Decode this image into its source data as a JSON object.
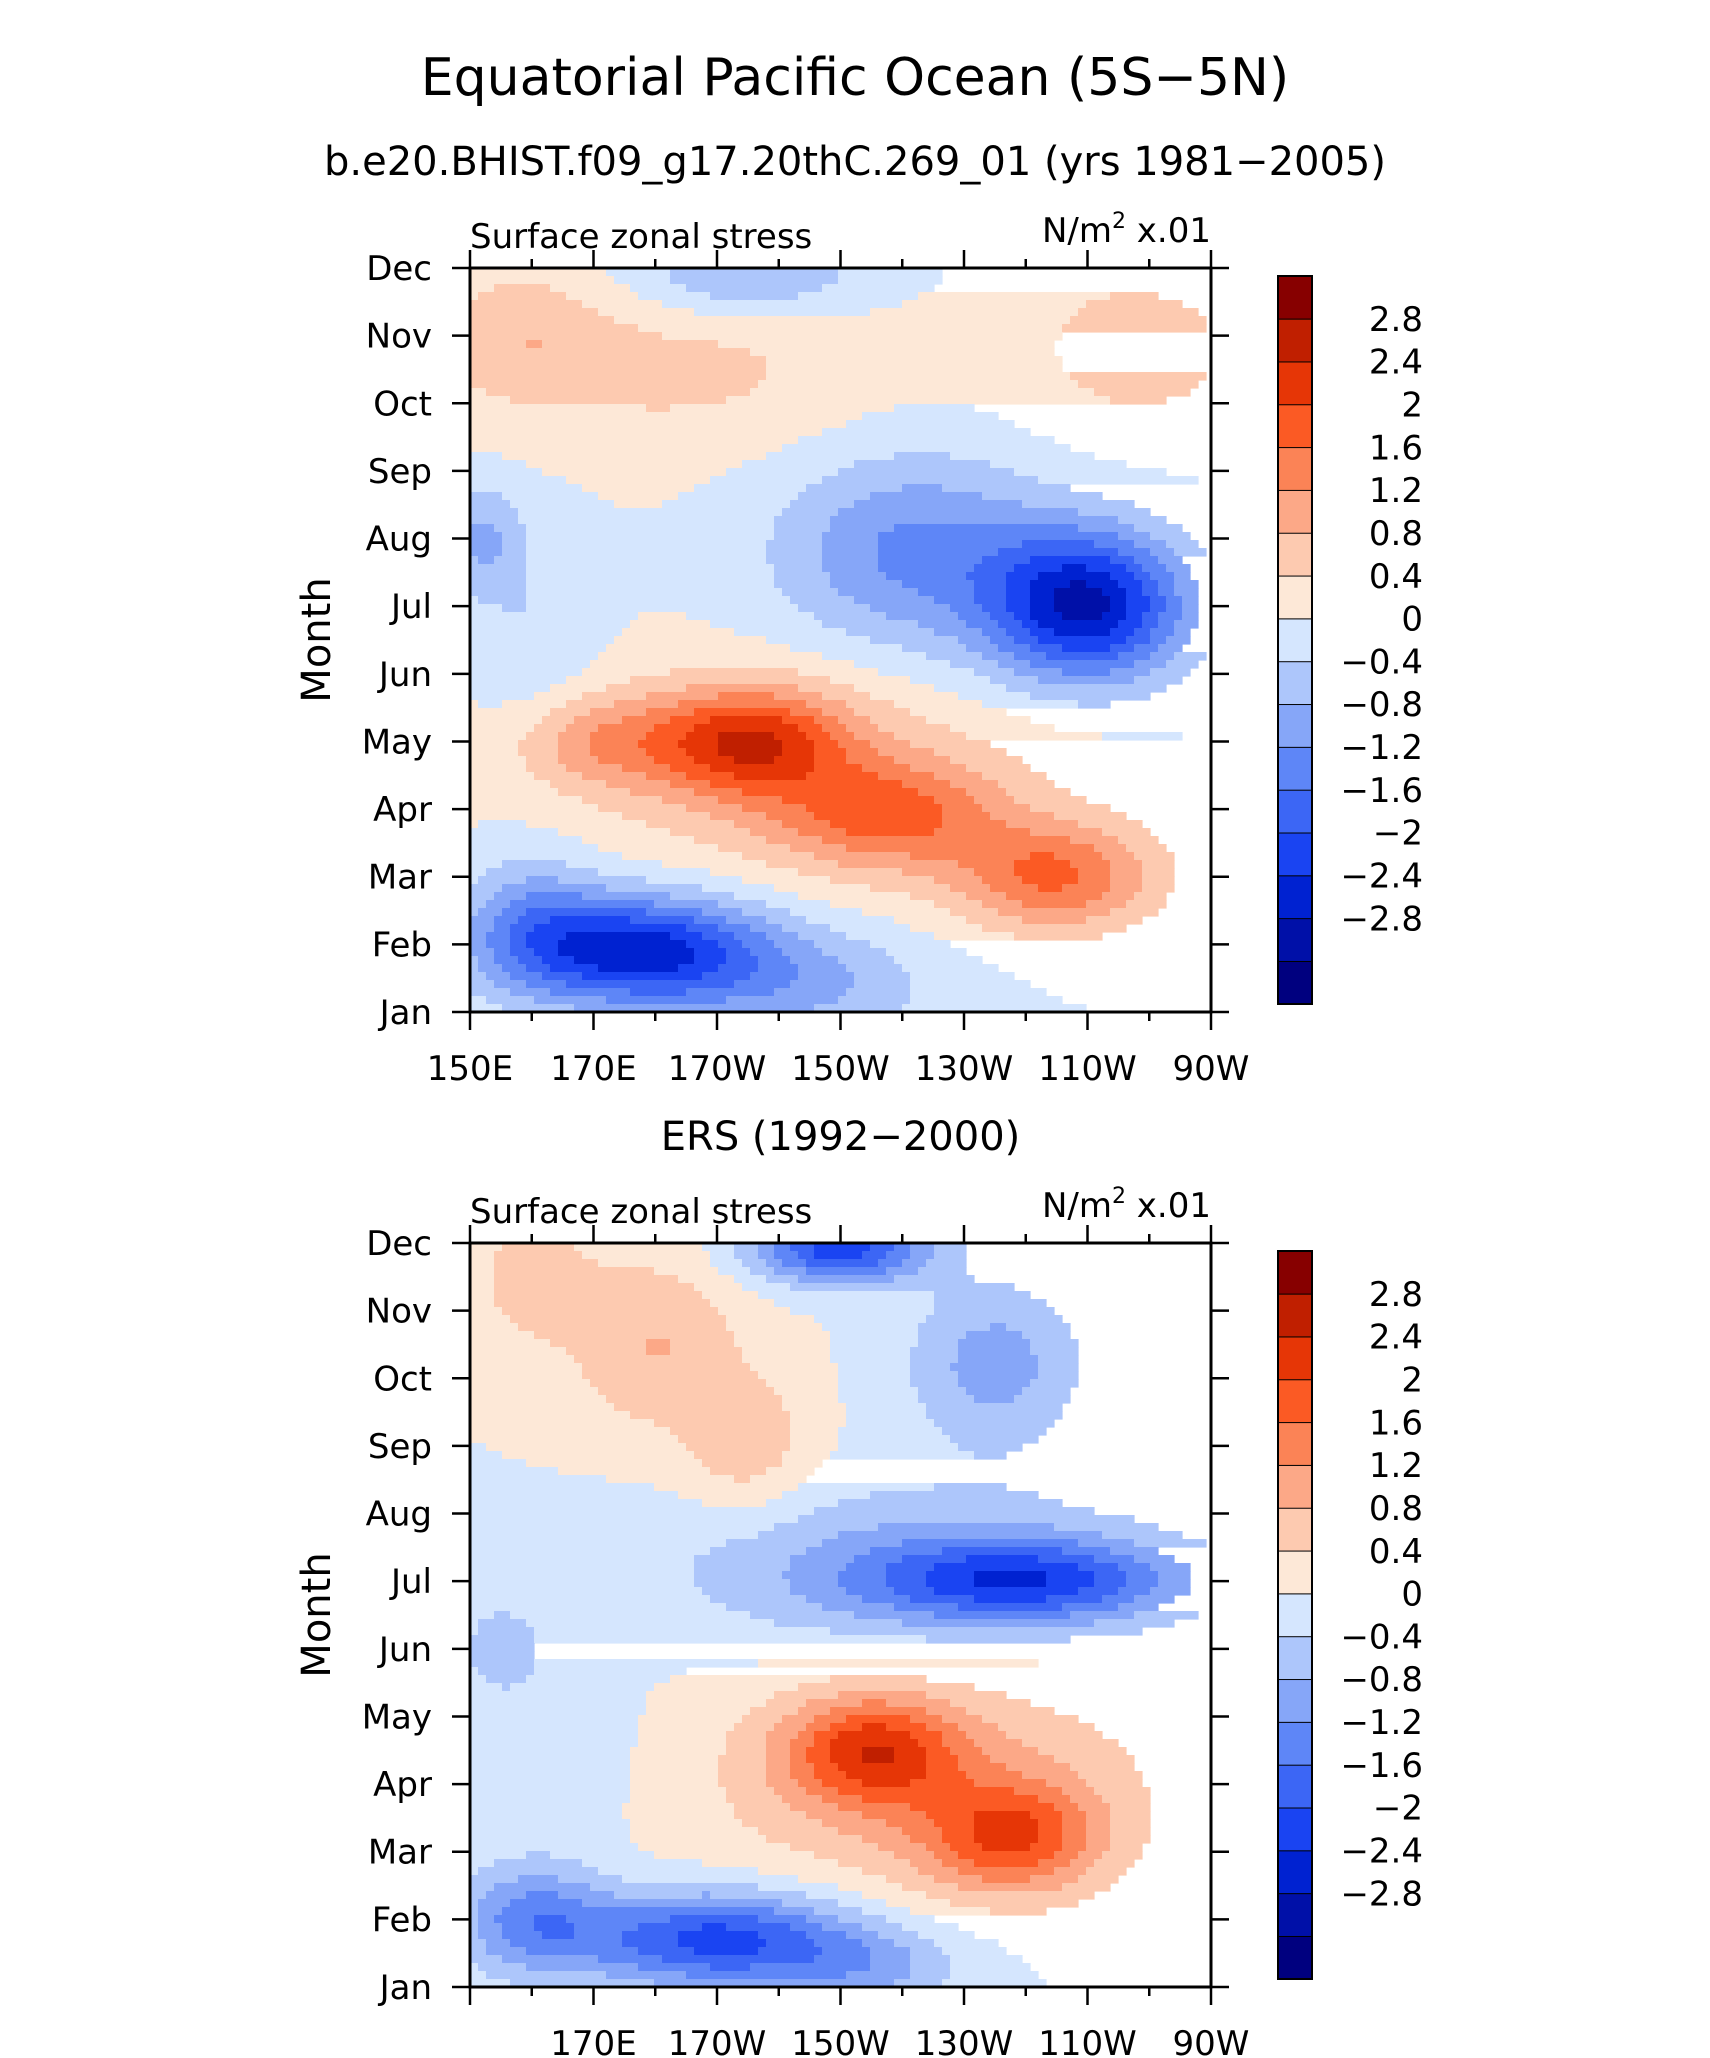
{
  "title": "Equatorial Pacific Ocean (5S−5N)",
  "subtitle": "b.e20.BHIST.f09_g17.20thC.269_01 (yrs 1981−2005)",
  "colors": [
    "#00007f",
    "#0010a8",
    "#0022d1",
    "#1a44f2",
    "#3c66f5",
    "#5e86f7",
    "#86a6f8",
    "#adc6fb",
    "#d5e6fe",
    "#fde8d7",
    "#fdcab0",
    "#fca887",
    "#fb8356",
    "#fb5a24",
    "#e63606",
    "#c01f00",
    "#870000"
  ],
  "chart_data": [
    {
      "type": "heatmap",
      "plot_title": "",
      "left_label": "Surface zonal stress",
      "right_label_prefix": "N/m",
      "right_label_sup": "2",
      "right_label_suffix": " x.01",
      "ylabel": "Month",
      "y_ticks": [
        "Jan",
        "Feb",
        "Mar",
        "Apr",
        "May",
        "Jun",
        "Jul",
        "Aug",
        "Sep",
        "Oct",
        "Nov",
        "Dec"
      ],
      "x_ticks": [
        {
          "lon": 150,
          "label": "150E"
        },
        {
          "lon": 170,
          "label": "170E"
        },
        {
          "lon": 190,
          "label": "170W"
        },
        {
          "lon": 210,
          "label": "150W"
        },
        {
          "lon": 230,
          "label": "130W"
        },
        {
          "lon": 250,
          "label": "110W"
        },
        {
          "lon": 270,
          "label": "90W"
        }
      ],
      "xlim": [
        150,
        270
      ],
      "colorbar_levels": [
        "2.8",
        "2.4",
        "2",
        "1.6",
        "1.2",
        "0.8",
        "0.4",
        "0",
        "−0.4",
        "−0.8",
        "−1.2",
        "−1.6",
        "−2",
        "−2.4",
        "−2.8"
      ],
      "features": [
        {
          "lon": 158,
          "month": 11,
          "amp": 0.6,
          "slon": 14,
          "smon": 1.0
        },
        {
          "lon": 185,
          "month": 10.5,
          "amp": 0.5,
          "slon": 30,
          "smon": 1.2
        },
        {
          "lon": 258,
          "month": 10.8,
          "amp": 0.6,
          "slon": 20,
          "smon": 1.3
        },
        {
          "lon": 195,
          "month": 11.9,
          "amp": -0.9,
          "slon": 18,
          "smon": 0.6
        },
        {
          "lon": 250,
          "month": 7.0,
          "amp": -2.8,
          "slon": 16,
          "smon": 1.1
        },
        {
          "lon": 222,
          "month": 7.8,
          "amp": -1.3,
          "slon": 22,
          "smon": 1.4
        },
        {
          "lon": 152,
          "month": 8.0,
          "amp": -0.8,
          "slon": 6,
          "smon": 0.8
        },
        {
          "lon": 160,
          "month": 6.5,
          "amp": -0.4,
          "slon": 10,
          "smon": 1.8
        },
        {
          "lon": 170,
          "month": 5.0,
          "amp": 0.9,
          "slon": 14,
          "smon": 0.7
        },
        {
          "lon": 195,
          "month": 5.0,
          "amp": 2.0,
          "slon": 16,
          "smon": 0.8
        },
        {
          "lon": 218,
          "month": 3.9,
          "amp": 1.4,
          "slon": 18,
          "smon": 0.8
        },
        {
          "lon": 245,
          "month": 3.0,
          "amp": 1.6,
          "slon": 16,
          "smon": 0.8
        },
        {
          "lon": 205,
          "month": 4.5,
          "amp": 0.6,
          "slon": 40,
          "smon": 1.5
        },
        {
          "lon": 178,
          "month": 1.9,
          "amp": -2.6,
          "slon": 20,
          "smon": 0.8
        },
        {
          "lon": 160,
          "month": 2.3,
          "amp": -1.0,
          "slon": 12,
          "smon": 1.0
        },
        {
          "lon": 205,
          "month": 1.4,
          "amp": -0.8,
          "slon": 20,
          "smon": 0.8
        }
      ]
    },
    {
      "type": "heatmap",
      "plot_title": "ERS (1992−2000)",
      "left_label": "Surface zonal stress",
      "right_label_prefix": "N/m",
      "right_label_sup": "2",
      "right_label_suffix": " x.01",
      "ylabel": "Month",
      "y_ticks": [
        "Jan",
        "Feb",
        "Mar",
        "Apr",
        "May",
        "Jun",
        "Jul",
        "Aug",
        "Sep",
        "Oct",
        "Nov",
        "Dec"
      ],
      "x_ticks": [
        {
          "lon": 170,
          "label": "170E"
        },
        {
          "lon": 190,
          "label": "170W"
        },
        {
          "lon": 210,
          "label": "150W"
        },
        {
          "lon": 230,
          "label": "130W"
        },
        {
          "lon": 250,
          "label": "110W"
        },
        {
          "lon": 270,
          "label": "90W"
        }
      ],
      "xlim": [
        150,
        270
      ],
      "colorbar_levels": [
        "2.8",
        "2.4",
        "2",
        "1.6",
        "1.2",
        "0.8",
        "0.4",
        "0",
        "−0.4",
        "−0.8",
        "−1.2",
        "−1.6",
        "−2",
        "−2.4",
        "−2.8"
      ],
      "features": [
        {
          "lon": 180,
          "month": 10.5,
          "amp": 0.8,
          "slon": 14,
          "smon": 1.3
        },
        {
          "lon": 195,
          "month": 9.0,
          "amp": 0.7,
          "slon": 10,
          "smon": 1.0
        },
        {
          "lon": 160,
          "month": 11.5,
          "amp": 0.6,
          "slon": 10,
          "smon": 1.0
        },
        {
          "lon": 210,
          "month": 11.9,
          "amp": -2.2,
          "slon": 14,
          "smon": 0.5
        },
        {
          "lon": 235,
          "month": 10.2,
          "amp": -1.0,
          "slon": 14,
          "smon": 1.2
        },
        {
          "lon": 240,
          "month": 7.0,
          "amp": -1.8,
          "slon": 25,
          "smon": 0.6
        },
        {
          "lon": 222,
          "month": 7.2,
          "amp": -0.9,
          "slon": 40,
          "smon": 1.2
        },
        {
          "lon": 155,
          "month": 6.0,
          "amp": -0.7,
          "slon": 6,
          "smon": 0.6
        },
        {
          "lon": 165,
          "month": 4.5,
          "amp": -0.3,
          "slon": 12,
          "smon": 1.6
        },
        {
          "lon": 215,
          "month": 4.5,
          "amp": 1.7,
          "slon": 14,
          "smon": 0.8
        },
        {
          "lon": 238,
          "month": 3.2,
          "amp": 1.6,
          "slon": 14,
          "smon": 0.8
        },
        {
          "lon": 225,
          "month": 4.0,
          "amp": 0.9,
          "slon": 35,
          "smon": 1.6
        },
        {
          "lon": 190,
          "month": 1.7,
          "amp": -2.2,
          "slon": 22,
          "smon": 0.7
        },
        {
          "lon": 160,
          "month": 2.0,
          "amp": -1.3,
          "slon": 12,
          "smon": 0.8
        },
        {
          "lon": 215,
          "month": 1.3,
          "amp": -0.8,
          "slon": 15,
          "smon": 0.6
        }
      ]
    }
  ]
}
